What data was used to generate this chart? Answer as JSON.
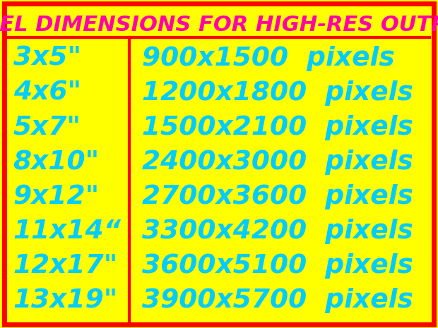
{
  "title": "PIXEL DIMENSIONS FOR HIGH-RES OUTPUT",
  "title_color": "#FF00AA",
  "title_fontsize": 22,
  "background_color": "#FFFF00",
  "border_color": "#FF0000",
  "divider_color": "#FF0000",
  "text_color": "#00CCFF",
  "sizes": [
    "3x5\"",
    "4x6\"",
    "5x7\"",
    "8x10\"",
    "9x12\"",
    "11x14“",
    "12x17\"",
    "13x19\""
  ],
  "pixels": [
    "900x1500  pixels",
    "1200x1800  pixels",
    "1500x2100  pixels",
    "2400x3000  pixels",
    "2700x3600  pixels",
    "3300x4200  pixels",
    "3600x5100  pixels",
    "3900x5700  pixels"
  ],
  "row_fontsize": 27,
  "figsize": [
    6.2,
    4.65
  ],
  "dpi": 100
}
